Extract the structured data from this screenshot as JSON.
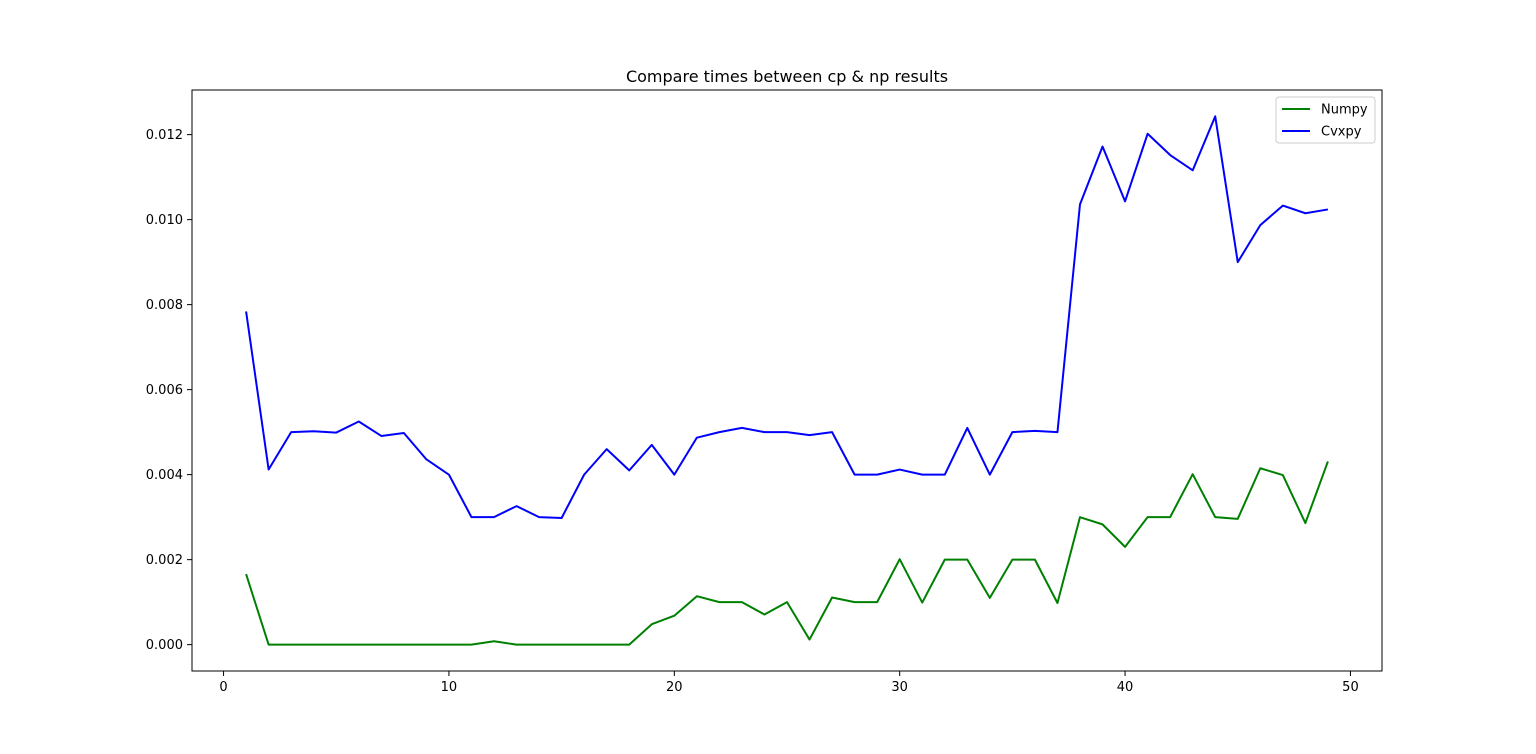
{
  "chart_data": {
    "type": "line",
    "title": "Compare times between cp & np results",
    "xlabel": "",
    "ylabel": "",
    "xlim": [
      -1.4,
      51.4
    ],
    "ylim": [
      -0.00062,
      0.01305
    ],
    "xticks": [
      0,
      10,
      20,
      30,
      40,
      50
    ],
    "xtick_labels": [
      "0",
      "10",
      "20",
      "30",
      "40",
      "50"
    ],
    "yticks": [
      0.0,
      0.002,
      0.004,
      0.006,
      0.008,
      0.01,
      0.012
    ],
    "ytick_labels": [
      "0.000",
      "0.002",
      "0.004",
      "0.006",
      "0.008",
      "0.010",
      "0.012"
    ],
    "grid": false,
    "legend_position": "top-right",
    "x": [
      1,
      2,
      3,
      4,
      5,
      6,
      7,
      8,
      9,
      10,
      11,
      12,
      13,
      14,
      15,
      16,
      17,
      18,
      19,
      20,
      21,
      22,
      23,
      24,
      25,
      26,
      27,
      28,
      29,
      30,
      31,
      32,
      33,
      34,
      35,
      36,
      37,
      38,
      39,
      40,
      41,
      42,
      43,
      44,
      45,
      46,
      47,
      48,
      49
    ],
    "series": [
      {
        "name": "Numpy",
        "color": "#008000",
        "values": [
          0.00166,
          0.0,
          0.0,
          0.0,
          0.0,
          0.0,
          0.0,
          0.0,
          0.0,
          0.0,
          0.0,
          8e-05,
          0.0,
          0.0,
          0.0,
          0.0,
          0.0,
          0.0,
          0.00048,
          0.00068,
          0.00114,
          0.001,
          0.001,
          0.00071,
          0.001,
          0.00012,
          0.00111,
          0.001,
          0.001,
          0.00201,
          0.00099,
          0.002,
          0.002,
          0.0011,
          0.002,
          0.002,
          0.00098,
          0.003,
          0.00283,
          0.0023,
          0.003,
          0.003,
          0.00401,
          0.003,
          0.00296,
          0.00415,
          0.00399,
          0.00286,
          0.00431
        ]
      },
      {
        "name": "Cvxpy",
        "color": "#0000ff",
        "values": [
          0.00784,
          0.00412,
          0.005,
          0.00502,
          0.00499,
          0.00525,
          0.00491,
          0.00498,
          0.00436,
          0.004,
          0.003,
          0.003,
          0.00326,
          0.003,
          0.00298,
          0.004,
          0.0046,
          0.0041,
          0.0047,
          0.004,
          0.00487,
          0.005,
          0.0051,
          0.005,
          0.005,
          0.00493,
          0.005,
          0.004,
          0.004,
          0.00412,
          0.004,
          0.004,
          0.0051,
          0.004,
          0.005,
          0.00503,
          0.005,
          0.01036,
          0.01172,
          0.01043,
          0.01202,
          0.01152,
          0.01116,
          0.01243,
          0.009,
          0.00987,
          0.01033,
          0.01015,
          0.01024
        ]
      }
    ]
  }
}
